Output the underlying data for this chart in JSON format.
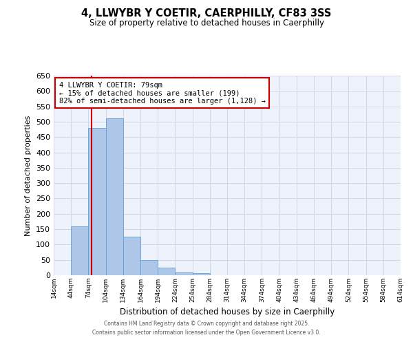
{
  "title": "4, LLWYBR Y COETIR, CAERPHILLY, CF83 3SS",
  "subtitle": "Size of property relative to detached houses in Caerphilly",
  "xlabel": "Distribution of detached houses by size in Caerphilly",
  "ylabel": "Number of detached properties",
  "bar_values": [
    0,
    160,
    480,
    510,
    125,
    50,
    25,
    10,
    7,
    0,
    0,
    0,
    0,
    0,
    0,
    0,
    0,
    0,
    0,
    0
  ],
  "bin_edges": [
    14,
    44,
    74,
    104,
    134,
    164,
    194,
    224,
    254,
    284,
    314,
    344,
    374,
    404,
    434,
    464,
    494,
    524,
    554,
    584,
    614
  ],
  "bin_labels": [
    "14sqm",
    "44sqm",
    "74sqm",
    "104sqm",
    "134sqm",
    "164sqm",
    "194sqm",
    "224sqm",
    "254sqm",
    "284sqm",
    "314sqm",
    "344sqm",
    "374sqm",
    "404sqm",
    "434sqm",
    "464sqm",
    "494sqm",
    "524sqm",
    "554sqm",
    "584sqm",
    "614sqm"
  ],
  "bar_color": "#aec6e8",
  "bar_edgecolor": "#5f9fd4",
  "ylim": [
    0,
    650
  ],
  "yticks": [
    0,
    50,
    100,
    150,
    200,
    250,
    300,
    350,
    400,
    450,
    500,
    550,
    600,
    650
  ],
  "property_line_x": 79,
  "annotation_title": "4 LLWYBR Y COETIR: 79sqm",
  "annotation_line1": "← 15% of detached houses are smaller (199)",
  "annotation_line2": "82% of semi-detached houses are larger (1,128) →",
  "annotation_box_color": "#ffffff",
  "annotation_box_edgecolor": "#cc0000",
  "vline_color": "#cc0000",
  "grid_color": "#d0d8e8",
  "background_color": "#eef2fa",
  "footer_line1": "Contains HM Land Registry data © Crown copyright and database right 2025.",
  "footer_line2": "Contains public sector information licensed under the Open Government Licence v3.0."
}
